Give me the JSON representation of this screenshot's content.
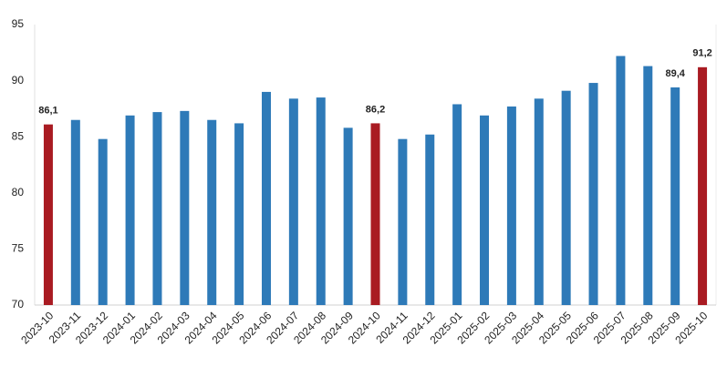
{
  "chart_data": {
    "type": "bar",
    "categories": [
      "2023-10",
      "2023-11",
      "2023-12",
      "2024-01",
      "2024-02",
      "2024-03",
      "2024-04",
      "2024-05",
      "2024-06",
      "2024-07",
      "2024-08",
      "2024-09",
      "2024-10",
      "2024-11",
      "2024-12",
      "2025-01",
      "2025-02",
      "2025-03",
      "2025-04",
      "2025-05",
      "2025-06",
      "2025-07",
      "2025-08",
      "2025-09",
      "2025-10"
    ],
    "values": [
      86.1,
      86.5,
      84.8,
      86.9,
      87.2,
      87.3,
      86.5,
      86.2,
      89.0,
      88.4,
      88.5,
      85.8,
      86.2,
      84.8,
      85.2,
      87.9,
      86.9,
      87.7,
      88.4,
      89.1,
      89.8,
      92.2,
      91.3,
      89.4,
      91.2
    ],
    "value_labels": [
      "86,1",
      null,
      null,
      null,
      null,
      null,
      null,
      null,
      null,
      null,
      null,
      null,
      "86,2",
      null,
      null,
      null,
      null,
      null,
      null,
      null,
      null,
      null,
      null,
      "89,4",
      "91,2"
    ],
    "colors": [
      "#a91b22",
      "#2e7ab8",
      "#2e7ab8",
      "#2e7ab8",
      "#2e7ab8",
      "#2e7ab8",
      "#2e7ab8",
      "#2e7ab8",
      "#2e7ab8",
      "#2e7ab8",
      "#2e7ab8",
      "#2e7ab8",
      "#a91b22",
      "#2e7ab8",
      "#2e7ab8",
      "#2e7ab8",
      "#2e7ab8",
      "#2e7ab8",
      "#2e7ab8",
      "#2e7ab8",
      "#2e7ab8",
      "#2e7ab8",
      "#2e7ab8",
      "#2e7ab8",
      "#a91b22"
    ],
    "ylim": [
      70,
      95
    ],
    "yticks": [
      70,
      75,
      80,
      85,
      90,
      95
    ],
    "grid": false
  }
}
